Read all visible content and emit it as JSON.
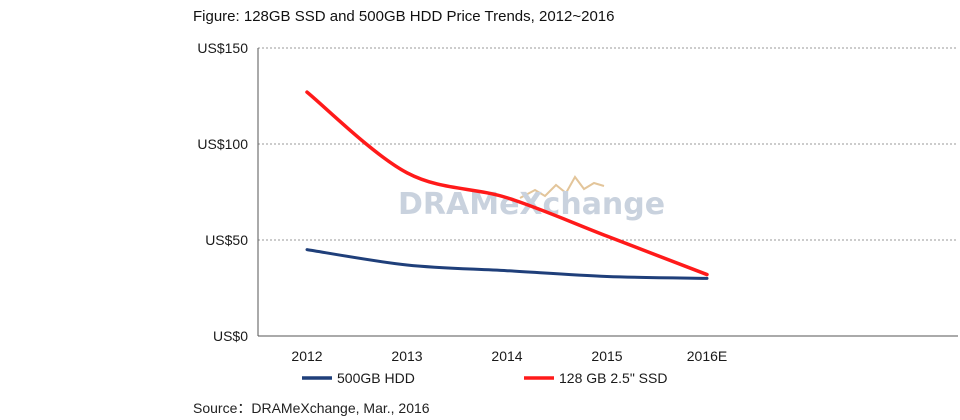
{
  "figure_title": "Figure: 128GB SSD and 500GB HDD Price Trends, 2012~2016",
  "source": "Source：DRAMeXchange, Mar., 2016",
  "watermark": "DRAMeXchange",
  "colors": {
    "hdd": "#1f3f7a",
    "ssd": "#ff1a1a",
    "grid": "#999999",
    "axis": "#555555"
  },
  "chart_data": {
    "type": "line",
    "title": "Figure: 128GB SSD and 500GB HDD Price Trends, 2012~2016",
    "xlabel": "",
    "ylabel": "",
    "categories": [
      "2012",
      "2013",
      "2014",
      "2015",
      "2016E"
    ],
    "ylim": [
      0,
      150
    ],
    "y_ticks": [
      0,
      50,
      100,
      150
    ],
    "y_tick_labels": [
      "US$0",
      "US$50",
      "US$100",
      "US$150"
    ],
    "grid": "horizontal dashed",
    "legend_placement": "bottom",
    "series": [
      {
        "name": "500GB HDD",
        "values": [
          45,
          37,
          34,
          31,
          30
        ]
      },
      {
        "name": "128 GB 2.5\" SSD",
        "values": [
          127,
          85,
          72,
          52,
          32
        ]
      }
    ]
  }
}
